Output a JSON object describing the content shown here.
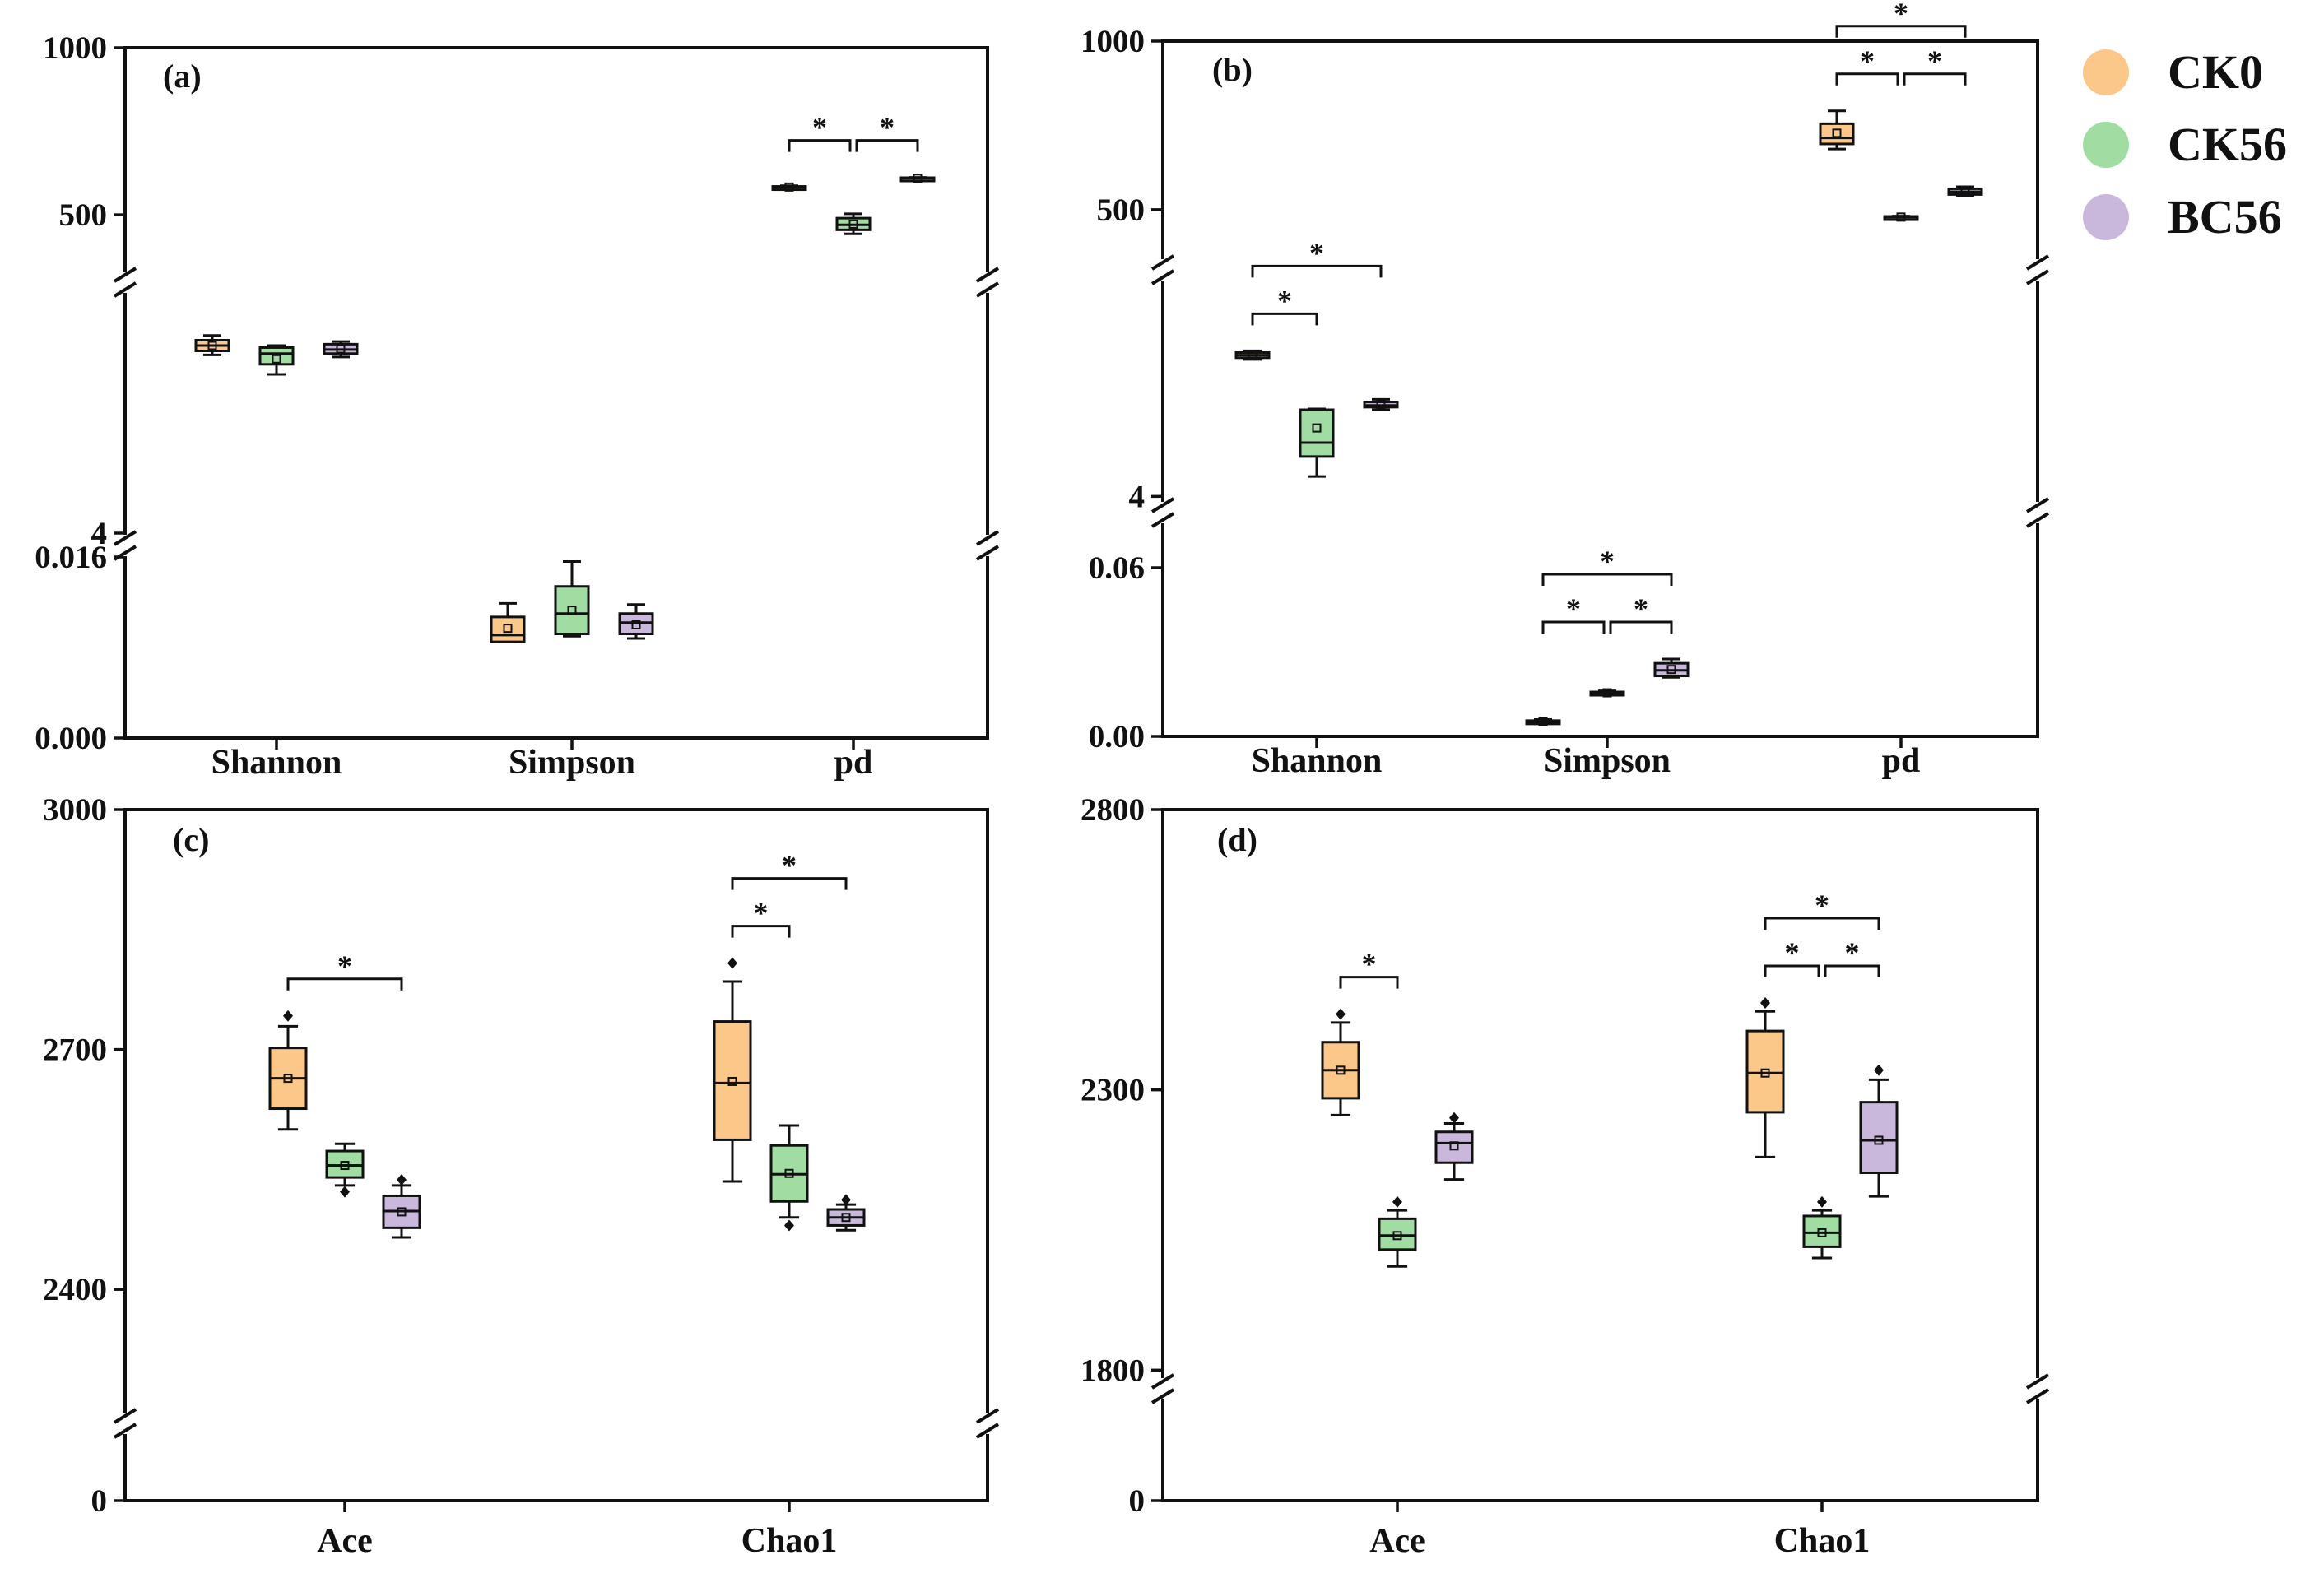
{
  "legend": {
    "items": [
      {
        "label": "CK0",
        "color": "#fbc88a"
      },
      {
        "label": "CK56",
        "color": "#a1dca3"
      },
      {
        "label": "BC56",
        "color": "#c9b8dc"
      }
    ]
  },
  "chart_data": [
    {
      "panel": "(a)",
      "type": "box",
      "categories": [
        "Shannon",
        "Simpson",
        "pd"
      ],
      "y_segments": [
        {
          "range": [
            0.0,
            0.016
          ],
          "ticks": [
            "0.000",
            "0.016"
          ]
        },
        {
          "range": [
            4,
            7.5
          ],
          "ticks": [
            "4"
          ]
        },
        {
          "range": [
            350,
            1000
          ],
          "ticks": [
            "500",
            "1000"
          ]
        }
      ],
      "axis_breaks": 2,
      "series": [
        {
          "name": "CK0",
          "boxes": [
            {
              "category": "Shannon",
              "min": 6.66,
              "q1": 6.72,
              "median": 6.8,
              "q3": 6.88,
              "max": 6.95,
              "mean": 6.8
            },
            {
              "category": "Simpson",
              "min": 0.0085,
              "q1": 0.0085,
              "median": 0.0091,
              "q3": 0.0107,
              "max": 0.0119,
              "mean": 0.0097
            },
            {
              "category": "pd",
              "min": 579,
              "q1": 581,
              "median": 583,
              "q3": 585,
              "max": 587,
              "mean": 583
            }
          ]
        },
        {
          "name": "CK56",
          "boxes": [
            {
              "category": "Shannon",
              "min": 6.37,
              "q1": 6.52,
              "median": 6.68,
              "q3": 6.77,
              "max": 6.8,
              "mean": 6.6
            },
            {
              "category": "Simpson",
              "min": 0.009,
              "q1": 0.0092,
              "median": 0.011,
              "q3": 0.0134,
              "max": 0.0156,
              "mean": 0.0113
            },
            {
              "category": "pd",
              "min": 443,
              "q1": 455,
              "median": 470,
              "q3": 490,
              "max": 503,
              "mean": 472
            }
          ]
        },
        {
          "name": "BC56",
          "boxes": [
            {
              "category": "Shannon",
              "min": 6.63,
              "q1": 6.68,
              "median": 6.74,
              "q3": 6.82,
              "max": 6.86,
              "mean": 6.75
            },
            {
              "category": "Simpson",
              "min": 0.0088,
              "q1": 0.0092,
              "median": 0.0102,
              "q3": 0.011,
              "max": 0.0118,
              "mean": 0.01
            },
            {
              "category": "pd",
              "min": 606,
              "q1": 607,
              "median": 609,
              "q3": 611,
              "max": 612,
              "mean": 609
            }
          ]
        }
      ],
      "significance": [
        {
          "category": "pd",
          "from": "CK0",
          "to": "CK56",
          "label": "*"
        },
        {
          "category": "pd",
          "from": "CK56",
          "to": "BC56",
          "label": "*"
        }
      ]
    },
    {
      "panel": "(b)",
      "type": "box",
      "categories": [
        "Shannon",
        "Simpson",
        "pd"
      ],
      "y_segments": [
        {
          "range": [
            0.0,
            0.06
          ],
          "ticks": [
            "0.00",
            "0.06"
          ]
        },
        {
          "range": [
            3.5,
            6.5
          ],
          "ticks": [
            "4"
          ]
        },
        {
          "range": [
            380,
            1000
          ],
          "ticks": [
            "500",
            "1000"
          ]
        }
      ],
      "axis_breaks": 2,
      "series": [
        {
          "name": "CK0",
          "boxes": [
            {
              "category": "Shannon",
              "min": 5.58,
              "q1": 5.6,
              "median": 5.63,
              "q3": 5.66,
              "max": 5.68,
              "mean": 5.63
            },
            {
              "category": "Simpson",
              "min": 0.0045,
              "q1": 0.0048,
              "median": 0.0052,
              "q3": 0.0056,
              "max": 0.006,
              "mean": 0.0052
            },
            {
              "category": "pd",
              "min": 680,
              "q1": 695,
              "median": 713,
              "q3": 755,
              "max": 793,
              "mean": 727
            }
          ]
        },
        {
          "name": "CK56",
          "boxes": [
            {
              "category": "Shannon",
              "min": 4.23,
              "q1": 4.46,
              "median": 4.62,
              "q3": 5.0,
              "max": 5.01,
              "mean": 4.79
            },
            {
              "category": "Simpson",
              "min": 0.0148,
              "q1": 0.015,
              "median": 0.0154,
              "q3": 0.0158,
              "max": 0.0162,
              "mean": 0.0155
            },
            {
              "category": "pd",
              "min": 475,
              "q1": 476,
              "median": 478,
              "q3": 480,
              "max": 481,
              "mean": 478
            }
          ]
        },
        {
          "name": "BC56",
          "boxes": [
            {
              "category": "Shannon",
              "min": 5.0,
              "q1": 5.03,
              "median": 5.05,
              "q3": 5.09,
              "max": 5.12,
              "mean": 5.06
            },
            {
              "category": "Simpson",
              "min": 0.021,
              "q1": 0.0215,
              "median": 0.0235,
              "q3": 0.026,
              "max": 0.0275,
              "mean": 0.0238
            },
            {
              "category": "pd",
              "min": 540,
              "q1": 545,
              "median": 553,
              "q3": 562,
              "max": 568,
              "mean": 553
            }
          ]
        }
      ],
      "significance": [
        {
          "category": "Shannon",
          "from": "CK0",
          "to": "CK56",
          "label": "*"
        },
        {
          "category": "Shannon",
          "from": "CK0",
          "to": "BC56",
          "label": "*"
        },
        {
          "category": "Simpson",
          "from": "CK0",
          "to": "CK56",
          "label": "*"
        },
        {
          "category": "Simpson",
          "from": "CK56",
          "to": "BC56",
          "label": "*"
        },
        {
          "category": "Simpson",
          "from": "CK0",
          "to": "BC56",
          "label": "*"
        },
        {
          "category": "pd",
          "from": "CK0",
          "to": "CK56",
          "label": "*"
        },
        {
          "category": "pd",
          "from": "CK56",
          "to": "BC56",
          "label": "*"
        },
        {
          "category": "pd",
          "from": "CK0",
          "to": "BC56",
          "label": "*"
        }
      ]
    },
    {
      "panel": "(c)",
      "type": "box",
      "categories": [
        "Ace",
        "Chao1"
      ],
      "y_segments": [
        {
          "range": [
            0,
            300
          ],
          "ticks": [
            "0"
          ]
        },
        {
          "range": [
            2250,
            3000
          ],
          "ticks": [
            "2400",
            "2700",
            "3000"
          ]
        }
      ],
      "axis_breaks": 1,
      "series": [
        {
          "name": "CK0",
          "boxes": [
            {
              "category": "Ace",
              "min": 2600,
              "q1": 2626,
              "median": 2664,
              "q3": 2702,
              "max": 2729,
              "mean": 2664,
              "outliers": [
                2742
              ]
            },
            {
              "category": "Chao1",
              "min": 2535,
              "q1": 2587,
              "median": 2658,
              "q3": 2735,
              "max": 2785,
              "mean": 2660,
              "outliers": [
                2808
              ]
            }
          ]
        },
        {
          "name": "CK56",
          "boxes": [
            {
              "category": "Ace",
              "min": 2530,
              "q1": 2540,
              "median": 2555,
              "q3": 2573,
              "max": 2582,
              "mean": 2555,
              "outliers": [
                2522
              ]
            },
            {
              "category": "Chao1",
              "min": 2490,
              "q1": 2510,
              "median": 2544,
              "q3": 2580,
              "max": 2605,
              "mean": 2545,
              "outliers": [
                2480
              ]
            }
          ]
        },
        {
          "name": "BC56",
          "boxes": [
            {
              "category": "Ace",
              "min": 2465,
              "q1": 2477,
              "median": 2498,
              "q3": 2517,
              "max": 2530,
              "mean": 2497,
              "outliers": [
                2537
              ]
            },
            {
              "category": "Chao1",
              "min": 2474,
              "q1": 2480,
              "median": 2490,
              "q3": 2500,
              "max": 2506,
              "mean": 2490,
              "outliers": [
                2512
              ]
            }
          ]
        }
      ],
      "significance": [
        {
          "category": "Ace",
          "from": "CK0",
          "to": "BC56",
          "label": "*"
        },
        {
          "category": "Chao1",
          "from": "CK0",
          "to": "CK56",
          "label": "*"
        },
        {
          "category": "Chao1",
          "from": "CK0",
          "to": "BC56",
          "label": "*"
        }
      ]
    },
    {
      "panel": "(d)",
      "type": "box",
      "categories": [
        "Ace",
        "Chao1"
      ],
      "y_segments": [
        {
          "range": [
            0,
            300
          ],
          "ticks": [
            "0"
          ]
        },
        {
          "range": [
            1730,
            2800
          ],
          "ticks": [
            "1800",
            "2300",
            "2800"
          ]
        }
      ],
      "axis_breaks": 1,
      "series": [
        {
          "name": "CK0",
          "boxes": [
            {
              "category": "Ace",
              "min": 2255,
              "q1": 2285,
              "median": 2335,
              "q3": 2385,
              "max": 2420,
              "mean": 2335,
              "outliers": [
                2435
              ]
            },
            {
              "category": "Chao1",
              "min": 2180,
              "q1": 2260,
              "median": 2330,
              "q3": 2405,
              "max": 2440,
              "mean": 2330,
              "outliers": [
                2455
              ]
            }
          ]
        },
        {
          "name": "CK56",
          "boxes": [
            {
              "category": "Ace",
              "min": 1985,
              "q1": 2015,
              "median": 2040,
              "q3": 2070,
              "max": 2085,
              "mean": 2040,
              "outliers": [
                2100
              ]
            },
            {
              "category": "Chao1",
              "min": 2000,
              "q1": 2020,
              "median": 2045,
              "q3": 2075,
              "max": 2085,
              "mean": 2045,
              "outliers": [
                2100
              ]
            }
          ]
        },
        {
          "name": "BC56",
          "boxes": [
            {
              "category": "Ace",
              "min": 2140,
              "q1": 2170,
              "median": 2205,
              "q3": 2225,
              "max": 2240,
              "mean": 2200,
              "outliers": [
                2250
              ]
            },
            {
              "category": "Chao1",
              "min": 2110,
              "q1": 2152,
              "median": 2210,
              "q3": 2278,
              "max": 2318,
              "mean": 2210,
              "outliers": [
                2335
              ]
            }
          ]
        }
      ],
      "significance": [
        {
          "category": "Ace",
          "from": "CK0",
          "to": "CK56",
          "label": "*"
        },
        {
          "category": "Chao1",
          "from": "CK0",
          "to": "CK56",
          "label": "*"
        },
        {
          "category": "Chao1",
          "from": "CK56",
          "to": "BC56",
          "label": "*"
        },
        {
          "category": "Chao1",
          "from": "CK0",
          "to": "BC56",
          "label": "*"
        }
      ]
    }
  ]
}
